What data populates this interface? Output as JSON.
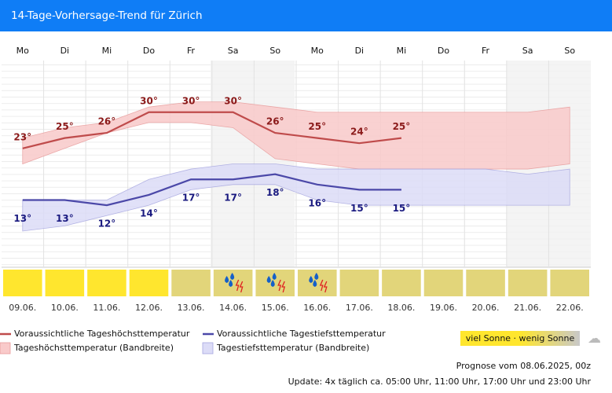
{
  "chart_data": {
    "type": "line",
    "title": "14-Tage-Vorhersage-Trend für Zürich",
    "categories": [
      "Mo",
      "Di",
      "Mi",
      "Do",
      "Fr",
      "Sa",
      "So",
      "Mo",
      "Di",
      "Mi",
      "Do",
      "Fr",
      "Sa",
      "So"
    ],
    "dates": [
      "09.06.",
      "10.06.",
      "11.06.",
      "12.06.",
      "13.06.",
      "14.06.",
      "15.06.",
      "16.06.",
      "17.06.",
      "18.06.",
      "19.06.",
      "20.06.",
      "21.06.",
      "22.06."
    ],
    "ylim": [
      0,
      40
    ],
    "series": [
      {
        "name": "Voraussichtliche Tageshöchsttemperatur",
        "color": "#bf4b4b",
        "values": [
          23,
          25,
          26,
          30,
          30,
          30,
          26,
          25,
          24,
          25,
          null,
          null,
          null,
          null
        ],
        "value_labels": [
          "23°",
          "25°",
          "26°",
          "30°",
          "30°",
          "30°",
          "26°",
          "25°",
          "24°",
          "25°",
          null,
          null,
          null,
          null
        ],
        "label_color": "#8b1a1a"
      },
      {
        "name": "Voraussichtliche Tagestiefsttemperatur",
        "color": "#4b48a8",
        "values": [
          13,
          13,
          12,
          14,
          17,
          17,
          18,
          16,
          15,
          15,
          null,
          null,
          null,
          null
        ],
        "value_labels": [
          "13°",
          "13°",
          "12°",
          "14°",
          "17°",
          "17°",
          "18°",
          "16°",
          "15°",
          "15°",
          null,
          null,
          null,
          null
        ],
        "label_color": "#1a1a80"
      }
    ],
    "bands": [
      {
        "name": "Tageshöchsttemperatur (Bandbreite)",
        "color": "#f9caca",
        "edge": "#e89a9a",
        "upper": [
          25,
          27,
          28,
          31,
          32,
          32,
          31,
          30,
          30,
          30,
          30,
          30,
          30,
          31
        ],
        "lower": [
          20,
          23,
          26,
          28,
          28,
          27,
          21,
          20,
          19,
          19,
          19,
          19,
          19,
          20
        ]
      },
      {
        "name": "Tagestiefsttemperatur (Bandbreite)",
        "color": "#dcdcf7",
        "edge": "#a6a6e0",
        "upper": [
          13,
          13,
          13,
          17,
          19,
          20,
          20,
          19,
          19,
          19,
          19,
          19,
          18,
          19
        ],
        "lower": [
          7,
          8,
          10,
          12,
          15,
          16,
          16,
          13,
          12,
          12,
          12,
          12,
          12,
          12
        ]
      }
    ],
    "day_colors": [
      "#ffe62e",
      "#ffe62e",
      "#ffe62e",
      "#ffe62e",
      "#e2d57a",
      "#e2d57a",
      "#e2d57a",
      "#e2d57a",
      "#e2d57a",
      "#e2d57a",
      "#e2d57a",
      "#e2d57a",
      "#e2d57a",
      "#e2d57a"
    ],
    "thunder": [
      false,
      false,
      false,
      false,
      false,
      true,
      true,
      true,
      false,
      false,
      false,
      false,
      false,
      false
    ],
    "sun_legend": "viel Sonne · wenig Sonne",
    "forecast_note": "Prognose vom 08.06.2025, 00z",
    "update_note": "Update: 4x täglich ca. 05:00 Uhr, 11:00 Uhr, 17:00 Uhr und 23:00 Uhr"
  }
}
